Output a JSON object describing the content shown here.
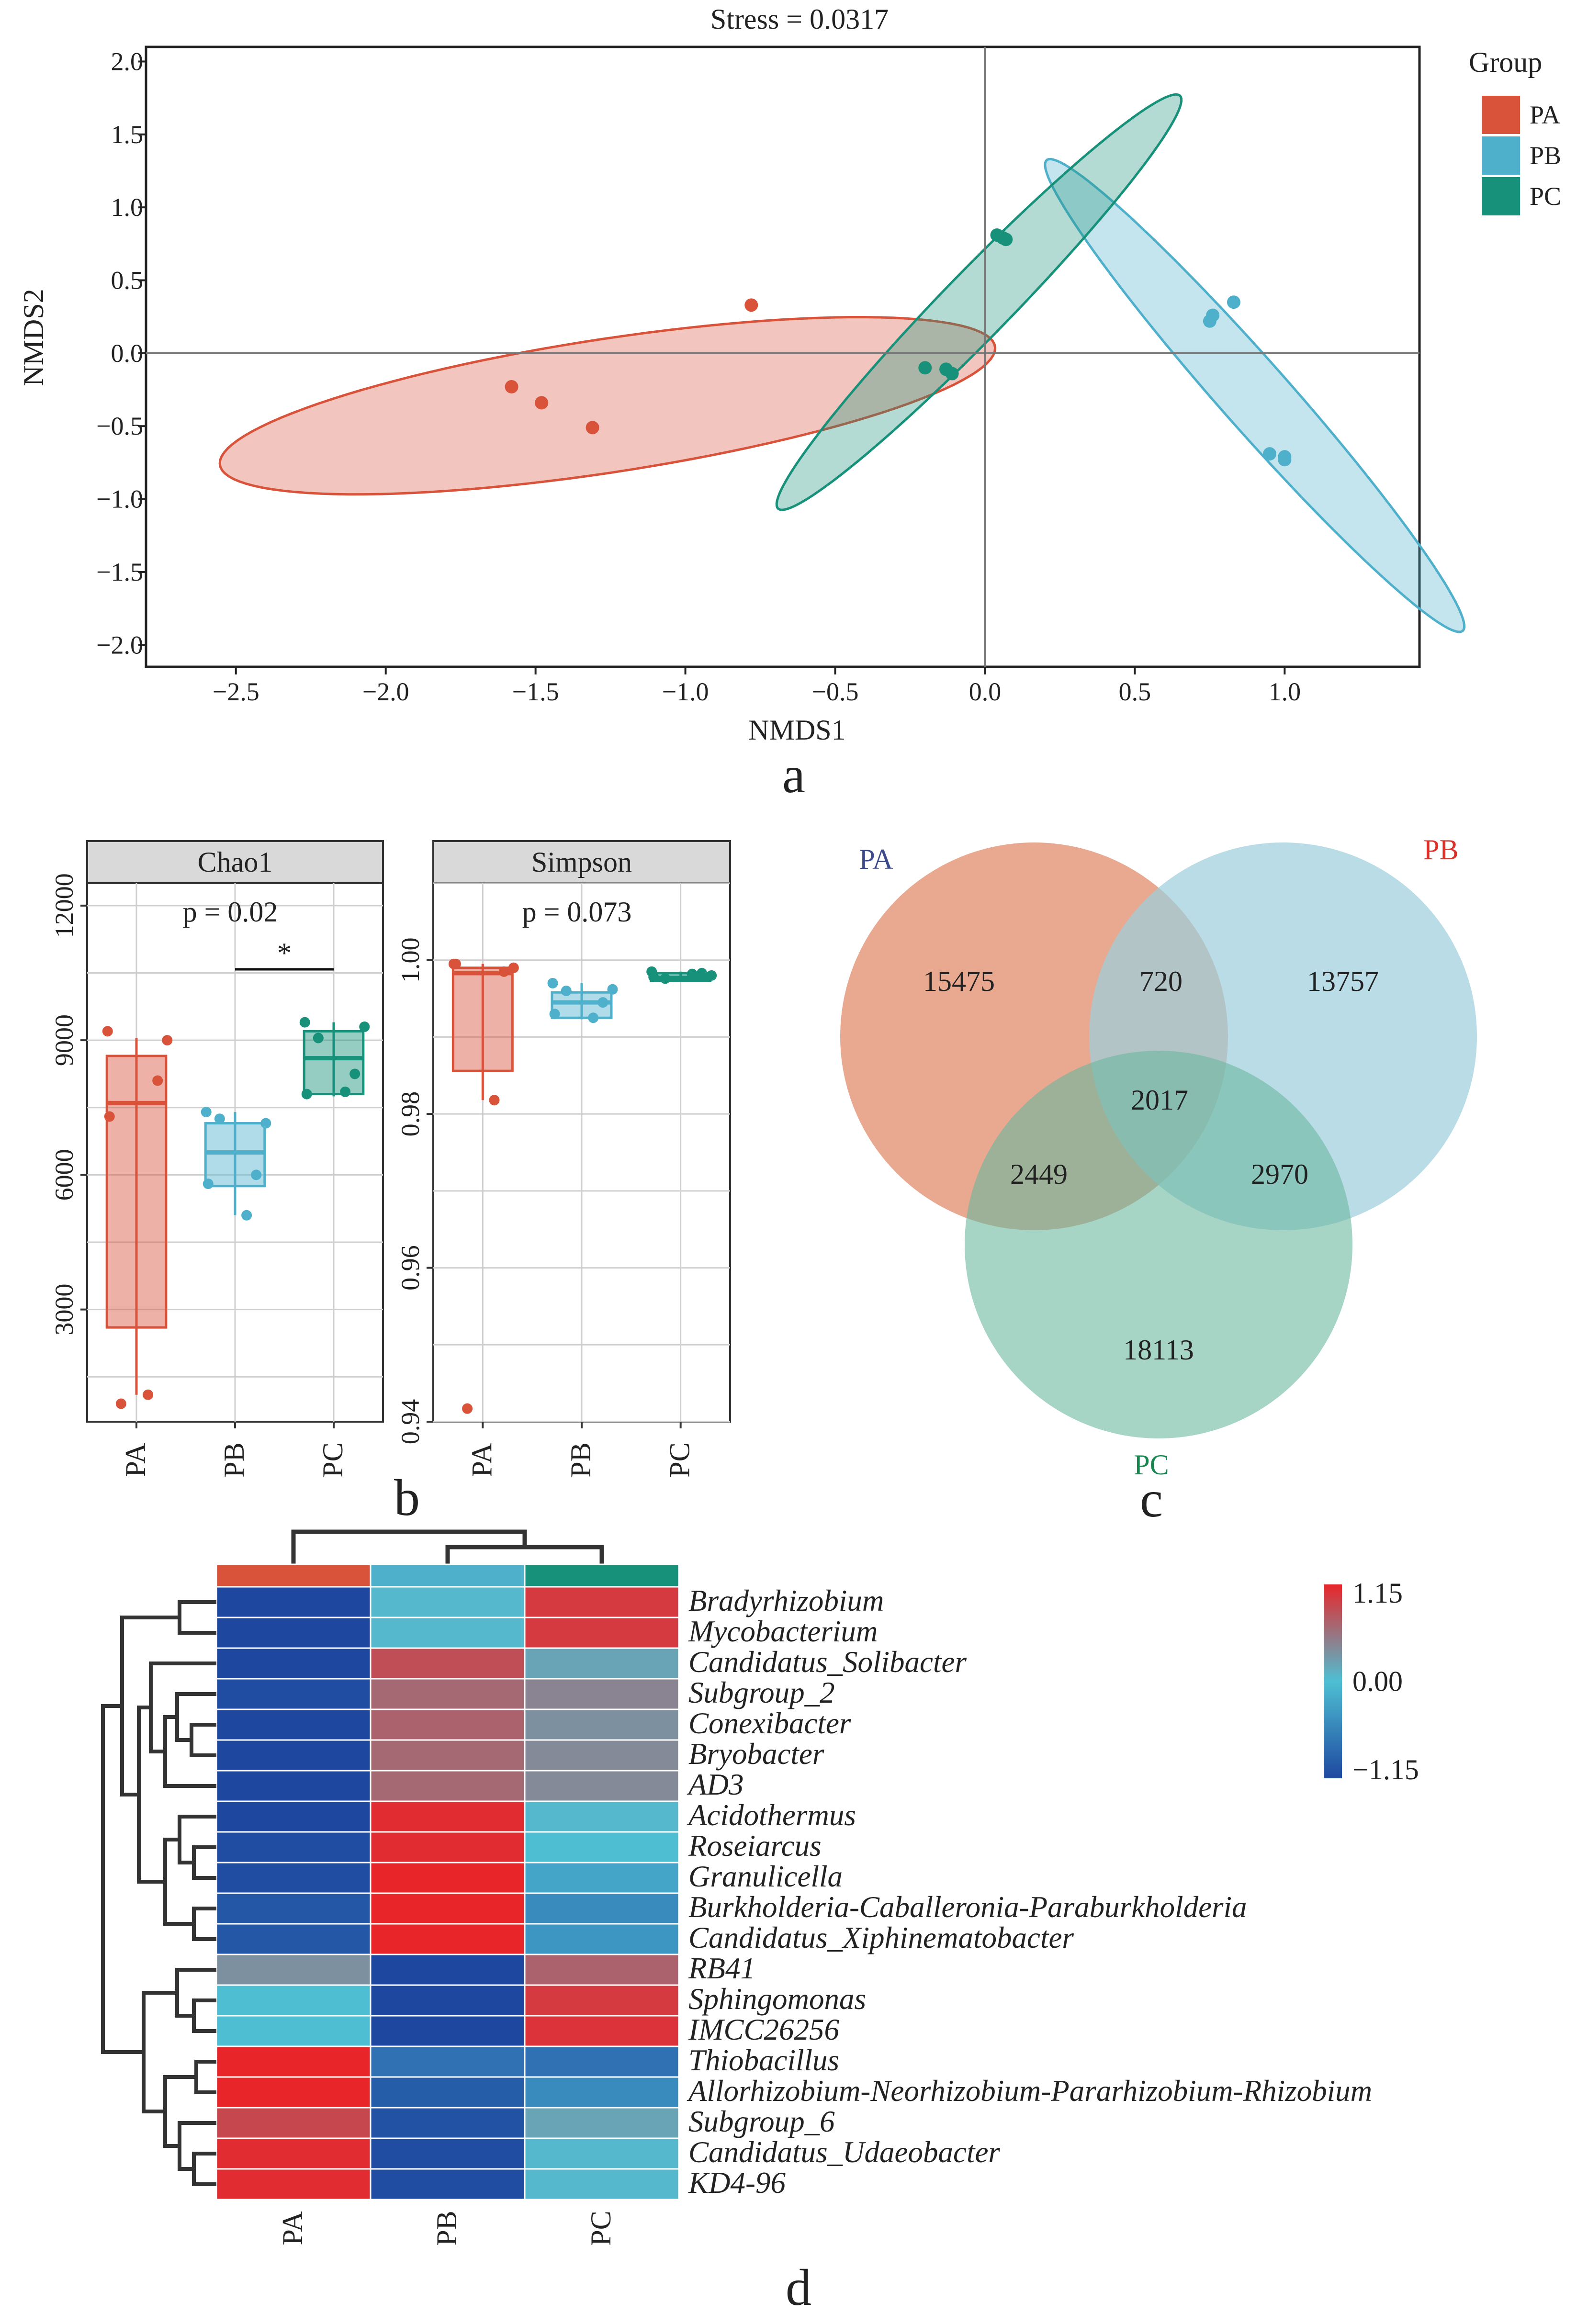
{
  "colors": {
    "PA": "#d9533b",
    "PB": "#4fb0cb",
    "PC": "#17917a",
    "heat_low": "#1e48a0",
    "heat_mid": "#4ebfd3",
    "heat_high": "#e8262a"
  },
  "chart_data": [
    {
      "type": "scatter",
      "subtype": "NMDS ordination with group ellipses",
      "panel_label": "a",
      "title": "Stress = 0.0317",
      "xlabel": "NMDS1",
      "ylabel": "NMDS2",
      "xlim": [
        -2.8,
        1.45
      ],
      "ylim": [
        -2.15,
        2.1
      ],
      "xticks": [
        -2.5,
        -2.0,
        -1.5,
        -1.0,
        -0.5,
        0.0,
        0.5,
        1.0
      ],
      "xtick_labels": [
        "−2.5",
        "−2.0",
        "−1.5",
        "−1.0",
        "−0.5",
        "0.0",
        "0.5",
        "1.0"
      ],
      "yticks": [
        2.0,
        1.5,
        1.0,
        0.5,
        0.0,
        -0.5,
        -1.0,
        -1.5,
        -2.0
      ],
      "ytick_labels": [
        "2.0",
        "1.5",
        "1.0",
        "0.5",
        "0.0",
        "−0.5",
        "−1.0",
        "−1.5",
        "−2.0"
      ],
      "reference_lines": {
        "x": 0,
        "y": 0
      },
      "legend": {
        "title": "Group",
        "entries": [
          "PA",
          "PB",
          "PC"
        ],
        "placement": "right"
      },
      "series": [
        {
          "name": "PA",
          "points": [
            [
              -0.78,
              0.33
            ],
            [
              -1.58,
              -0.23
            ],
            [
              -1.48,
              -0.34
            ],
            [
              -1.31,
              -0.51
            ]
          ],
          "ellipse": {
            "center": [
              -1.26,
              -0.36
            ],
            "semi_major": 1.36,
            "semi_minor": 0.44,
            "angle_deg": 19
          }
        },
        {
          "name": "PB",
          "points": [
            [
              0.75,
              0.22
            ],
            [
              0.76,
              0.26
            ],
            [
              0.83,
              0.35
            ],
            [
              0.95,
              -0.69
            ],
            [
              1.0,
              -0.73
            ],
            [
              1.0,
              -0.71
            ]
          ],
          "ellipse": {
            "center": [
              0.9,
              -0.29
            ],
            "semi_major": 1.76,
            "semi_minor": 0.14,
            "angle_deg": -67
          }
        },
        {
          "name": "PC",
          "points": [
            [
              0.04,
              0.81
            ],
            [
              0.07,
              0.78
            ],
            [
              0.06,
              0.79
            ],
            [
              -0.2,
              -0.1
            ],
            [
              -0.13,
              -0.11
            ],
            [
              -0.11,
              -0.14
            ]
          ],
          "ellipse": {
            "center": [
              -0.02,
              0.35
            ],
            "semi_major": 1.57,
            "semi_minor": 0.14,
            "angle_deg": 65
          }
        }
      ]
    },
    {
      "type": "box",
      "panel_label": "b",
      "title": "Chao1",
      "annotation": "p = 0.02",
      "significance": {
        "from": "PB",
        "to": "PC",
        "label": "*"
      },
      "categories": [
        "PA",
        "PB",
        "PC"
      ],
      "ylim": [
        500,
        12500
      ],
      "yticks": [
        3000,
        6000,
        9000,
        12000
      ],
      "ytick_labels": [
        "3000",
        "6000",
        "9000",
        "12000"
      ],
      "boxes": [
        {
          "name": "PA",
          "q1": 2600,
          "median": 7600,
          "q3": 8650,
          "whisker_low": 1100,
          "whisker_high": 9050,
          "points": [
            9200,
            9000,
            8100,
            7300,
            1100,
            900
          ]
        },
        {
          "name": "PB",
          "q1": 5750,
          "median": 6500,
          "q3": 7150,
          "whisker_low": 5100,
          "whisker_high": 7400,
          "points": [
            7400,
            7150,
            6000,
            5800,
            5100,
            7250
          ]
        },
        {
          "name": "PC",
          "q1": 7800,
          "median": 8600,
          "q3": 9200,
          "whisker_low": 7750,
          "whisker_high": 9400,
          "points": [
            9400,
            9300,
            8250,
            7800,
            7850,
            9050
          ]
        }
      ]
    },
    {
      "type": "box",
      "panel_label": "b",
      "title": "Simpson",
      "annotation": "p = 0.073",
      "categories": [
        "PA",
        "PB",
        "PC"
      ],
      "ylim": [
        0.94,
        1.01
      ],
      "yticks": [
        0.94,
        0.96,
        0.98,
        1.0
      ],
      "ytick_labels": [
        "0.94",
        "0.96",
        "0.98",
        "1.00"
      ],
      "boxes": [
        {
          "name": "PA",
          "q1": 0.9856,
          "median": 0.9983,
          "q3": 0.999,
          "whisker_low": 0.9818,
          "whisker_high": 0.9995,
          "points": [
            0.9995,
            0.999,
            0.9985,
            0.9995,
            0.9818,
            0.9417
          ]
        },
        {
          "name": "PB",
          "q1": 0.9925,
          "median": 0.9945,
          "q3": 0.9958,
          "whisker_low": 0.9923,
          "whisker_high": 0.997,
          "points": [
            0.997,
            0.9962,
            0.9945,
            0.993,
            0.9925,
            0.996
          ]
        },
        {
          "name": "PC",
          "q1": 0.9973,
          "median": 0.9977,
          "q3": 0.9983,
          "whisker_low": 0.9972,
          "whisker_high": 0.9985,
          "points": [
            0.9985,
            0.998,
            0.9983,
            0.9978,
            0.9982,
            0.9976
          ]
        }
      ]
    },
    {
      "type": "venn",
      "panel_label": "c",
      "sets": [
        "PA",
        "PB",
        "PC"
      ],
      "label_colors": {
        "PA": "#3c4a8c",
        "PB": "#d9302a",
        "PC": "#17864e"
      },
      "regions": {
        "PA_only": "15475",
        "PB_only": "13757",
        "PC_only": "18113",
        "PA_PB": "720",
        "PA_PC": "2449",
        "PB_PC": "2970",
        "PA_PB_PC": "2017"
      }
    },
    {
      "type": "heatmap",
      "panel_label": "d",
      "columns": [
        "PA",
        "PB",
        "PC"
      ],
      "rows": [
        "Bradyrhizobium",
        "Mycobacterium",
        "Candidatus_Solibacter",
        "Subgroup_2",
        "Conexibacter",
        "Bryobacter",
        "AD3",
        "Acidothermus",
        "Roseiarcus",
        "Granulicella",
        "Burkholderia-Caballeronia-Paraburkholderia",
        "Candidatus_Xiphinematobacter",
        "RB41",
        "Sphingomonas",
        "IMCC26256",
        "Thiobacillus",
        "Allorhizobium-Neorhizobium-Pararhizobium-Rhizobium",
        "Subgroup_6",
        "Candidatus_Udaeobacter",
        "KD4-96"
      ],
      "values": [
        [
          -1.15,
          0.05,
          1.0
        ],
        [
          -1.15,
          0.05,
          1.0
        ],
        [
          -1.15,
          0.85,
          0.2
        ],
        [
          -1.1,
          0.65,
          0.45
        ],
        [
          -1.15,
          0.7,
          0.35
        ],
        [
          -1.15,
          0.65,
          0.4
        ],
        [
          -1.15,
          0.65,
          0.4
        ],
        [
          -1.15,
          1.1,
          0.05
        ],
        [
          -1.1,
          1.1,
          0.0
        ],
        [
          -1.1,
          1.15,
          -0.25
        ],
        [
          -1.0,
          1.15,
          -0.5
        ],
        [
          -1.0,
          1.15,
          -0.4
        ],
        [
          0.35,
          -1.15,
          0.7
        ],
        [
          0.0,
          -1.15,
          1.0
        ],
        [
          0.0,
          -1.15,
          1.05
        ],
        [
          1.15,
          -0.75,
          -0.75
        ],
        [
          1.15,
          -0.95,
          -0.5
        ],
        [
          0.9,
          -1.05,
          0.2
        ],
        [
          1.1,
          -1.1,
          0.05
        ],
        [
          1.1,
          -1.1,
          0.05
        ]
      ],
      "colorbar": {
        "min": -1.15,
        "max": 1.15,
        "tick_labels": [
          "1.15",
          "0.00",
          "−1.15"
        ]
      },
      "column_annotation": [
        "PA",
        "PB",
        "PC"
      ]
    }
  ]
}
